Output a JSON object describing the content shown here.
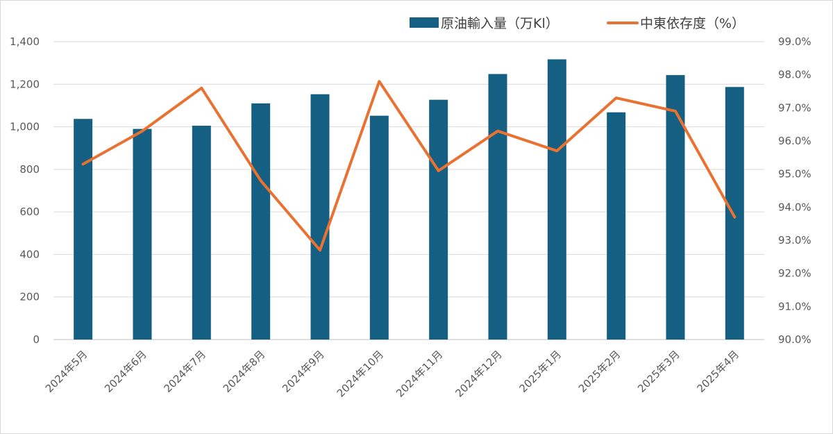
{
  "chart_data": {
    "type": "bar",
    "categories": [
      "2024年5月",
      "2024年6月",
      "2024年7月",
      "2024年8月",
      "2024年9月",
      "2024年10月",
      "2024年11月",
      "2024年12月",
      "2025年1月",
      "2025年2月",
      "2025年3月",
      "2025年4月"
    ],
    "series": [
      {
        "name": "原油輸入量（万Kl）",
        "type": "bar",
        "axis": "left",
        "color": "#156082",
        "values": [
          1037,
          990,
          1005,
          1110,
          1153,
          1052,
          1127,
          1248,
          1317,
          1068,
          1243,
          1187
        ]
      },
      {
        "name": "中東依存度（%）",
        "type": "line",
        "axis": "right",
        "color": "#E97132",
        "values": [
          95.3,
          96.3,
          97.6,
          94.8,
          92.7,
          97.8,
          95.1,
          96.3,
          95.7,
          97.3,
          96.9,
          93.7
        ]
      }
    ],
    "y_left": {
      "ylim": [
        0,
        1400
      ],
      "ticks": [
        "0",
        "200",
        "400",
        "600",
        "800",
        "1,000",
        "1,200",
        "1,400"
      ]
    },
    "y_right": {
      "ylim": [
        90,
        99
      ],
      "ticks": [
        "90.0%",
        "91.0%",
        "92.0%",
        "93.0%",
        "94.0%",
        "95.0%",
        "96.0%",
        "97.0%",
        "98.0%",
        "99.0%"
      ]
    },
    "grid": true,
    "legend_position": "top-right"
  }
}
